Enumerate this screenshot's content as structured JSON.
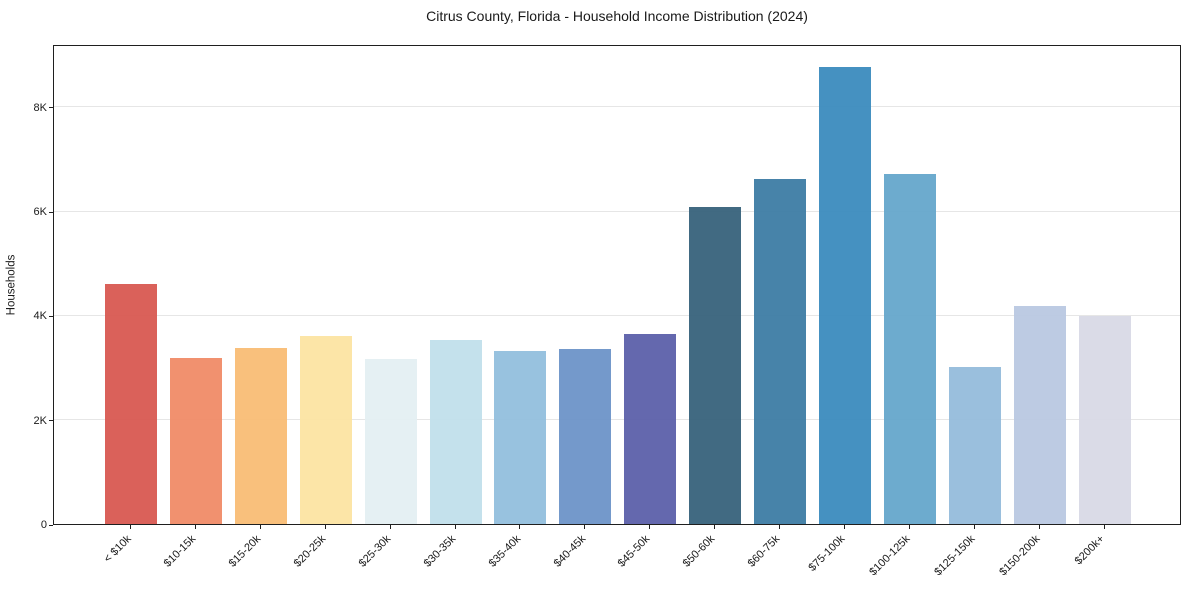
{
  "title": "Citrus County, Florida - Household Income Distribution (2024)",
  "chart_data": {
    "type": "bar",
    "title": "Citrus County, Florida - Household Income Distribution (2024)",
    "xlabel": "",
    "ylabel": "Households",
    "categories": [
      "< $10k",
      "$10-15k",
      "$15-20k",
      "$20-25k",
      "$25-30k",
      "$30-35k",
      "$35-40k",
      "$40-45k",
      "$45-50k",
      "$50-60k",
      "$60-75k",
      "$75-100k",
      "$100-125k",
      "$125-150k",
      "$150-200k",
      "$200k+"
    ],
    "values": [
      4610,
      3180,
      3380,
      3610,
      3170,
      3530,
      3320,
      3360,
      3640,
      6080,
      6610,
      8770,
      6710,
      3010,
      4190,
      4000
    ],
    "bar_colors": [
      "#d85750",
      "#f08a66",
      "#f9bc74",
      "#fce3a2",
      "#e3eff2",
      "#c0dfeb",
      "#92bedd",
      "#6b93c8",
      "#5a5fa9",
      "#35617a",
      "#3b7ba4",
      "#398abd",
      "#64a6cb",
      "#94bbdb",
      "#b9c8e1",
      "#d8d9e6"
    ],
    "yticks": [
      {
        "value": 0,
        "label": "0"
      },
      {
        "value": 2000,
        "label": "2K"
      },
      {
        "value": 4000,
        "label": "4K"
      },
      {
        "value": 6000,
        "label": "6K"
      },
      {
        "value": 8000,
        "label": "8K"
      }
    ],
    "ylim": [
      0,
      9208
    ],
    "grid": "horizontal",
    "grid_color": "#e6e6e6",
    "axis_color": "#1f1f1f",
    "legend": "none"
  }
}
